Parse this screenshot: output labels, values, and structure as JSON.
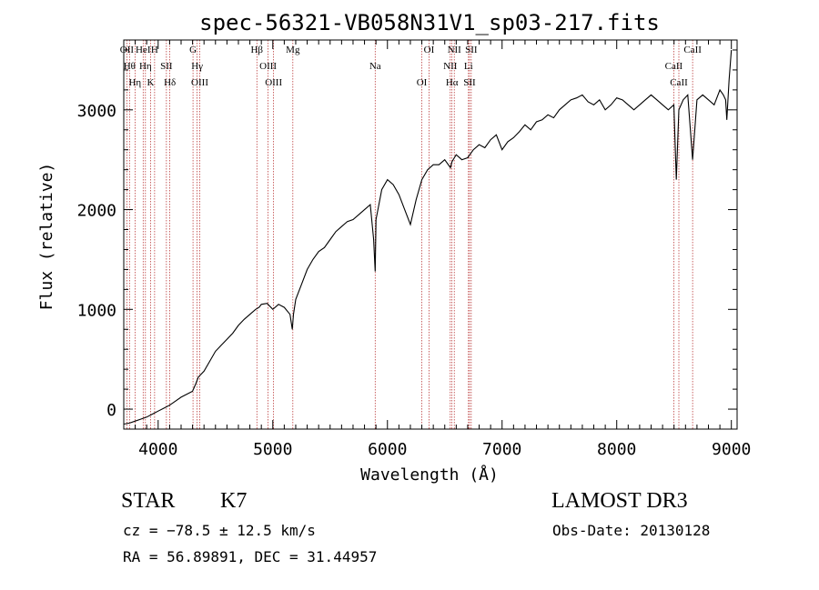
{
  "chart_data": {
    "type": "line",
    "title": "spec-56321-VB058N31V1_sp03-217.fits",
    "xlabel": "Wavelength (Å)",
    "ylabel": "Flux (relative)",
    "xlim": [
      3700,
      9050
    ],
    "ylim": [
      -200,
      3700
    ],
    "xticks": [
      4000,
      5000,
      6000,
      7000,
      8000,
      9000
    ],
    "yticks": [
      0,
      1000,
      2000,
      3000
    ],
    "series": [
      {
        "name": "spectrum",
        "x": [
          3700,
          3750,
          3800,
          3850,
          3900,
          3950,
          4000,
          4050,
          4100,
          4150,
          4200,
          4250,
          4300,
          4330,
          4350,
          4400,
          4450,
          4500,
          4550,
          4600,
          4650,
          4700,
          4750,
          4800,
          4850,
          4880,
          4900,
          4950,
          5000,
          5050,
          5100,
          5150,
          5170,
          5180,
          5200,
          5250,
          5300,
          5350,
          5400,
          5450,
          5500,
          5550,
          5600,
          5650,
          5700,
          5750,
          5800,
          5850,
          5880,
          5893,
          5900,
          5950,
          6000,
          6050,
          6100,
          6150,
          6200,
          6250,
          6300,
          6350,
          6400,
          6450,
          6500,
          6550,
          6563,
          6600,
          6650,
          6700,
          6750,
          6800,
          6850,
          6900,
          6950,
          7000,
          7050,
          7100,
          7150,
          7200,
          7250,
          7300,
          7350,
          7400,
          7450,
          7500,
          7550,
          7600,
          7650,
          7700,
          7750,
          7800,
          7850,
          7900,
          7950,
          8000,
          8050,
          8100,
          8150,
          8200,
          8250,
          8300,
          8350,
          8400,
          8450,
          8498,
          8520,
          8542,
          8580,
          8620,
          8662,
          8700,
          8750,
          8800,
          8850,
          8900,
          8930,
          8950,
          8960,
          8980,
          9000
        ],
        "y": [
          -150,
          -140,
          -120,
          -100,
          -80,
          -50,
          -20,
          10,
          40,
          80,
          120,
          150,
          180,
          260,
          320,
          380,
          480,
          580,
          640,
          700,
          760,
          840,
          900,
          950,
          1000,
          1020,
          1050,
          1060,
          1000,
          1050,
          1020,
          950,
          800,
          950,
          1100,
          1250,
          1400,
          1500,
          1580,
          1620,
          1700,
          1780,
          1830,
          1880,
          1900,
          1950,
          2000,
          2050,
          1700,
          1380,
          1900,
          2200,
          2300,
          2250,
          2150,
          2000,
          1850,
          2100,
          2300,
          2400,
          2450,
          2450,
          2500,
          2420,
          2480,
          2550,
          2500,
          2520,
          2600,
          2650,
          2620,
          2700,
          2750,
          2600,
          2680,
          2720,
          2780,
          2850,
          2800,
          2880,
          2900,
          2950,
          2920,
          3000,
          3050,
          3100,
          3120,
          3150,
          3080,
          3050,
          3100,
          3000,
          3050,
          3120,
          3100,
          3050,
          3000,
          3050,
          3100,
          3150,
          3100,
          3050,
          3000,
          3050,
          2300,
          3000,
          3100,
          3150,
          2500,
          3100,
          3150,
          3100,
          3050,
          3200,
          3150,
          3100,
          2900,
          3300,
          3600
        ]
      }
    ],
    "lines": [
      {
        "x": 3727,
        "label": "OII"
      },
      {
        "x": 3750,
        "label": "Hθ"
      },
      {
        "x": 3798,
        "label": "Hη"
      },
      {
        "x": 3869,
        "label": "HeI"
      },
      {
        "x": 3889,
        "label": "Hη"
      },
      {
        "x": 3934,
        "label": "K"
      },
      {
        "x": 3969,
        "label": "H"
      },
      {
        "x": 4072,
        "label": "SII"
      },
      {
        "x": 4102,
        "label": "Hδ"
      },
      {
        "x": 4304,
        "label": "G"
      },
      {
        "x": 4340,
        "label": "Hγ"
      },
      {
        "x": 4363,
        "label": "OIII"
      },
      {
        "x": 4861,
        "label": "Hβ"
      },
      {
        "x": 4959,
        "label": "OIII"
      },
      {
        "x": 5007,
        "label": "OIII"
      },
      {
        "x": 5175,
        "label": "Mg"
      },
      {
        "x": 5893,
        "label": "Na"
      },
      {
        "x": 6300,
        "label": "OI"
      },
      {
        "x": 6363,
        "label": "OI"
      },
      {
        "x": 6548,
        "label": "NII"
      },
      {
        "x": 6563,
        "label": "Hα"
      },
      {
        "x": 6583,
        "label": "NII"
      },
      {
        "x": 6707,
        "label": "Li"
      },
      {
        "x": 6716,
        "label": "SII"
      },
      {
        "x": 6731,
        "label": "SII"
      },
      {
        "x": 8498,
        "label": "CaII"
      },
      {
        "x": 8542,
        "label": "CaII"
      },
      {
        "x": 8662,
        "label": "CaII"
      }
    ],
    "annotations": {
      "class_label": "STAR",
      "subclass_label": "K7",
      "survey": "LAMOST DR3",
      "redshift": "cz = −78.5 ± 12.5 km/s",
      "obs_date": "Obs-Date: 20130128",
      "coords": "RA =  56.89891, DEC =  31.44957"
    }
  }
}
